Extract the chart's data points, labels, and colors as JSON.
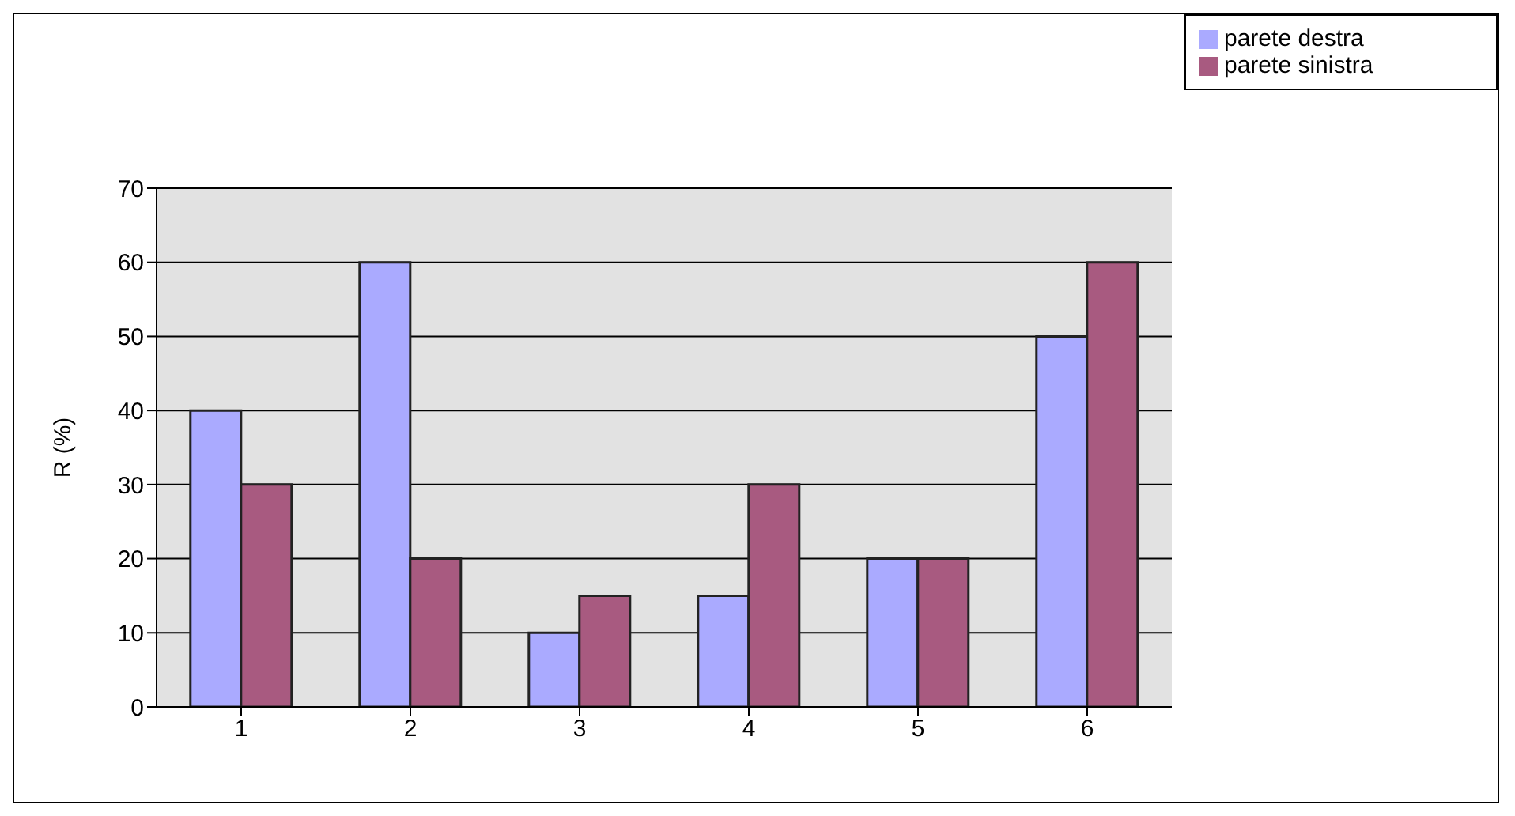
{
  "chart_data": {
    "type": "bar",
    "ylabel": "R (%)",
    "categories": [
      "1",
      "2",
      "3",
      "4",
      "5",
      "6"
    ],
    "series": [
      {
        "name": "parete destra",
        "color": "#aaaaff",
        "values": [
          40,
          60,
          10,
          15,
          20,
          50
        ]
      },
      {
        "name": "parete sinistra",
        "color": "#a85a80",
        "values": [
          30,
          20,
          15,
          30,
          20,
          60
        ]
      }
    ],
    "ylim": [
      0,
      70
    ],
    "yticks": [
      0,
      10,
      20,
      30,
      40,
      50,
      60,
      70
    ],
    "grid": "y",
    "legend": "top right"
  }
}
